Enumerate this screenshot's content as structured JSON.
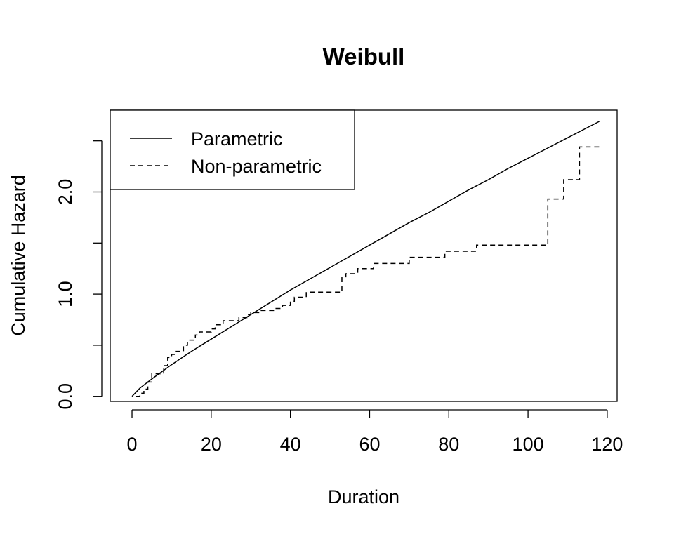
{
  "chart_data": {
    "type": "line",
    "title": "Weibull",
    "xlabel": "Duration",
    "ylabel": "Cumulative Hazard",
    "xlim": [
      -5.5,
      122.5
    ],
    "ylim": [
      -0.05,
      2.8
    ],
    "x_ticks": [
      0,
      20,
      40,
      60,
      80,
      100,
      120
    ],
    "x_tick_labels": [
      "0",
      "20",
      "40",
      "60",
      "80",
      "100",
      "120"
    ],
    "y_ticks": [
      0.0,
      0.5,
      1.0,
      1.5,
      2.0,
      2.5
    ],
    "y_tick_labels": [
      "0.0",
      "",
      "1.0",
      "",
      "2.0",
      ""
    ],
    "grid": false,
    "legend": {
      "position": "top-left",
      "entries": [
        "Parametric",
        "Non-parametric"
      ]
    },
    "series": [
      {
        "name": "Parametric",
        "style": "solid",
        "color": "#000000",
        "x": [
          0,
          2,
          5,
          10,
          15,
          20,
          25,
          30,
          35,
          40,
          45,
          50,
          55,
          60,
          65,
          70,
          75,
          80,
          85,
          90,
          95,
          100,
          105,
          110,
          115,
          118
        ],
        "y": [
          0,
          0.08,
          0.17,
          0.31,
          0.44,
          0.56,
          0.68,
          0.8,
          0.92,
          1.04,
          1.15,
          1.26,
          1.37,
          1.48,
          1.59,
          1.7,
          1.8,
          1.91,
          2.02,
          2.12,
          2.23,
          2.33,
          2.43,
          2.53,
          2.63,
          2.69
        ]
      },
      {
        "name": "Non-parametric",
        "style": "dashed",
        "step": true,
        "color": "#000000",
        "x": [
          1,
          2,
          3,
          4,
          5,
          8,
          9,
          10,
          11,
          13,
          14,
          16,
          17,
          20,
          21,
          23,
          27,
          29,
          30,
          32,
          36,
          38,
          40,
          41,
          44,
          53,
          54,
          57,
          61,
          70,
          79,
          87,
          105,
          109,
          113,
          118
        ],
        "y": [
          0,
          0.03,
          0.07,
          0.14,
          0.22,
          0.3,
          0.38,
          0.41,
          0.44,
          0.5,
          0.55,
          0.6,
          0.63,
          0.66,
          0.7,
          0.74,
          0.77,
          0.8,
          0.82,
          0.84,
          0.86,
          0.89,
          0.93,
          0.97,
          1.02,
          1.17,
          1.2,
          1.25,
          1.3,
          1.36,
          1.42,
          1.48,
          1.93,
          2.12,
          2.44,
          2.44
        ]
      }
    ]
  }
}
